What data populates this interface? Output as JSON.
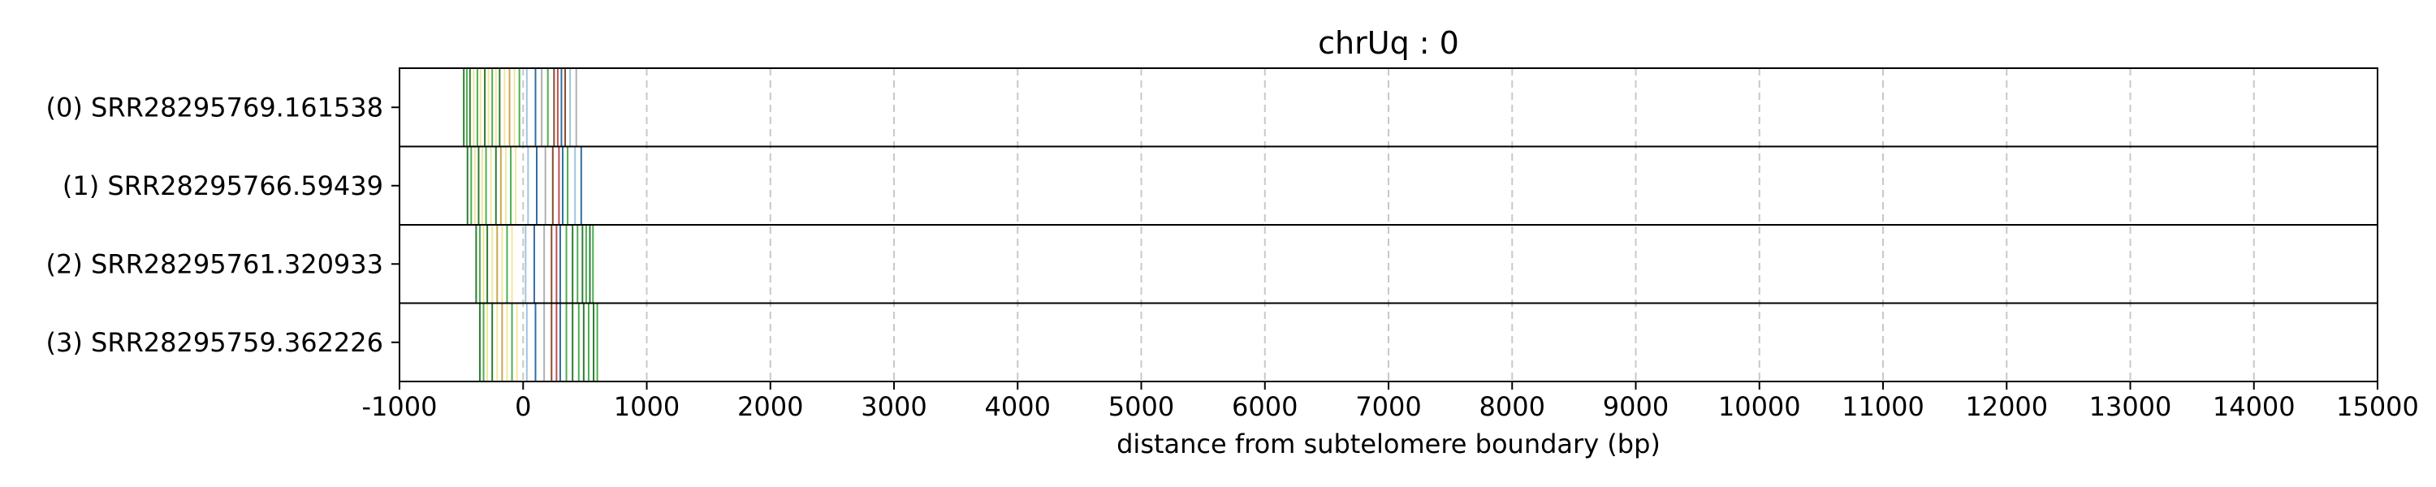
{
  "chart_data": {
    "type": "track",
    "title": "chrUq : 0",
    "xlabel": "distance from subtelomere boundary (bp)",
    "ylabel": "",
    "xlim": [
      -1000,
      15000
    ],
    "xticks": [
      -1000,
      0,
      1000,
      2000,
      3000,
      4000,
      5000,
      6000,
      7000,
      8000,
      9000,
      10000,
      11000,
      12000,
      13000,
      14000,
      15000
    ],
    "xtick_labels": [
      "-1000",
      "0",
      "1000",
      "2000",
      "3000",
      "4000",
      "5000",
      "6000",
      "7000",
      "8000",
      "9000",
      "10000",
      "11000",
      "12000",
      "13000",
      "14000",
      "15000"
    ],
    "grid": "vertical dashed",
    "reads": [
      {
        "label": "(0) SRR28295769.161538",
        "start": -480,
        "end": 440,
        "marks": [
          {
            "x": -480,
            "color": "#2e7d32"
          },
          {
            "x": -455,
            "color": "#4caf50"
          },
          {
            "x": -430,
            "color": "#2e7d32"
          },
          {
            "x": -400,
            "color": "#f2e6a0"
          },
          {
            "x": -370,
            "color": "#4caf50"
          },
          {
            "x": -345,
            "color": "#f2e6a0"
          },
          {
            "x": -310,
            "color": "#2e7d32"
          },
          {
            "x": -280,
            "color": "#f2e6a0"
          },
          {
            "x": -250,
            "color": "#4caf50"
          },
          {
            "x": -220,
            "color": "#f2e6a0"
          },
          {
            "x": -190,
            "color": "#2e7d32"
          },
          {
            "x": -150,
            "color": "#f2e6a0"
          },
          {
            "x": -110,
            "color": "#c8a850"
          },
          {
            "x": -70,
            "color": "#f2e6a0"
          },
          {
            "x": -30,
            "color": "#4caf50"
          },
          {
            "x": 30,
            "color": "#a0c4e0"
          },
          {
            "x": 100,
            "color": "#2f6fa3"
          },
          {
            "x": 150,
            "color": "#b0b0b0"
          },
          {
            "x": 200,
            "color": "#4caf50"
          },
          {
            "x": 250,
            "color": "#8b4a2e"
          },
          {
            "x": 280,
            "color": "#c05050"
          },
          {
            "x": 310,
            "color": "#2f6fa3"
          },
          {
            "x": 340,
            "color": "#8b4a2e"
          },
          {
            "x": 380,
            "color": "#a0c4e0"
          },
          {
            "x": 430,
            "color": "#b0b0b0"
          }
        ]
      },
      {
        "label": "(1) SRR28295766.59439",
        "start": -450,
        "end": 480,
        "marks": [
          {
            "x": -450,
            "color": "#2e7d32"
          },
          {
            "x": -420,
            "color": "#4caf50"
          },
          {
            "x": -390,
            "color": "#f2e6a0"
          },
          {
            "x": -360,
            "color": "#2e7d32"
          },
          {
            "x": -330,
            "color": "#f2e6a0"
          },
          {
            "x": -300,
            "color": "#4caf50"
          },
          {
            "x": -260,
            "color": "#f2e6a0"
          },
          {
            "x": -220,
            "color": "#2e7d32"
          },
          {
            "x": -180,
            "color": "#c8a850"
          },
          {
            "x": -140,
            "color": "#f2e6a0"
          },
          {
            "x": -100,
            "color": "#4caf50"
          },
          {
            "x": -60,
            "color": "#f2e6a0"
          },
          {
            "x": 40,
            "color": "#a0c4e0"
          },
          {
            "x": 110,
            "color": "#2f6fa3"
          },
          {
            "x": 180,
            "color": "#b0b0b0"
          },
          {
            "x": 240,
            "color": "#8b4a2e"
          },
          {
            "x": 290,
            "color": "#c05050"
          },
          {
            "x": 320,
            "color": "#2f6fa3"
          },
          {
            "x": 360,
            "color": "#4caf50"
          },
          {
            "x": 420,
            "color": "#a0c4e0"
          },
          {
            "x": 470,
            "color": "#2f6fa3"
          }
        ]
      },
      {
        "label": "(2) SRR28295761.320933",
        "start": -380,
        "end": 570,
        "marks": [
          {
            "x": -380,
            "color": "#2e7d32"
          },
          {
            "x": -350,
            "color": "#4caf50"
          },
          {
            "x": -320,
            "color": "#f2e6a0"
          },
          {
            "x": -290,
            "color": "#2e7d32"
          },
          {
            "x": -250,
            "color": "#f2e6a0"
          },
          {
            "x": -210,
            "color": "#c8a850"
          },
          {
            "x": -170,
            "color": "#f2e6a0"
          },
          {
            "x": -130,
            "color": "#4caf50"
          },
          {
            "x": -90,
            "color": "#f2e6a0"
          },
          {
            "x": 20,
            "color": "#a0c4e0"
          },
          {
            "x": 90,
            "color": "#2f6fa3"
          },
          {
            "x": 170,
            "color": "#b0b0b0"
          },
          {
            "x": 230,
            "color": "#8b4a2e"
          },
          {
            "x": 270,
            "color": "#c05050"
          },
          {
            "x": 300,
            "color": "#2f6fa3"
          },
          {
            "x": 350,
            "color": "#4caf50"
          },
          {
            "x": 400,
            "color": "#2e7d32"
          },
          {
            "x": 440,
            "color": "#4caf50"
          },
          {
            "x": 480,
            "color": "#2e7d32"
          },
          {
            "x": 510,
            "color": "#4caf50"
          },
          {
            "x": 540,
            "color": "#2e7d32"
          },
          {
            "x": 565,
            "color": "#4caf50"
          }
        ]
      },
      {
        "label": "(3) SRR28295759.362226",
        "start": -350,
        "end": 610,
        "marks": [
          {
            "x": -350,
            "color": "#2e7d32"
          },
          {
            "x": -320,
            "color": "#4caf50"
          },
          {
            "x": -290,
            "color": "#f2e6a0"
          },
          {
            "x": -250,
            "color": "#2e7d32"
          },
          {
            "x": -210,
            "color": "#f2e6a0"
          },
          {
            "x": -170,
            "color": "#c8a850"
          },
          {
            "x": -130,
            "color": "#f2e6a0"
          },
          {
            "x": -90,
            "color": "#4caf50"
          },
          {
            "x": -50,
            "color": "#f2e6a0"
          },
          {
            "x": 30,
            "color": "#a0c4e0"
          },
          {
            "x": 100,
            "color": "#2f6fa3"
          },
          {
            "x": 170,
            "color": "#b0b0b0"
          },
          {
            "x": 230,
            "color": "#8b4a2e"
          },
          {
            "x": 270,
            "color": "#c05050"
          },
          {
            "x": 300,
            "color": "#2f6fa3"
          },
          {
            "x": 350,
            "color": "#4caf50"
          },
          {
            "x": 400,
            "color": "#2e7d32"
          },
          {
            "x": 450,
            "color": "#4caf50"
          },
          {
            "x": 490,
            "color": "#2e7d32"
          },
          {
            "x": 530,
            "color": "#4caf50"
          },
          {
            "x": 570,
            "color": "#2e7d32"
          },
          {
            "x": 600,
            "color": "#4caf50"
          }
        ]
      }
    ]
  }
}
